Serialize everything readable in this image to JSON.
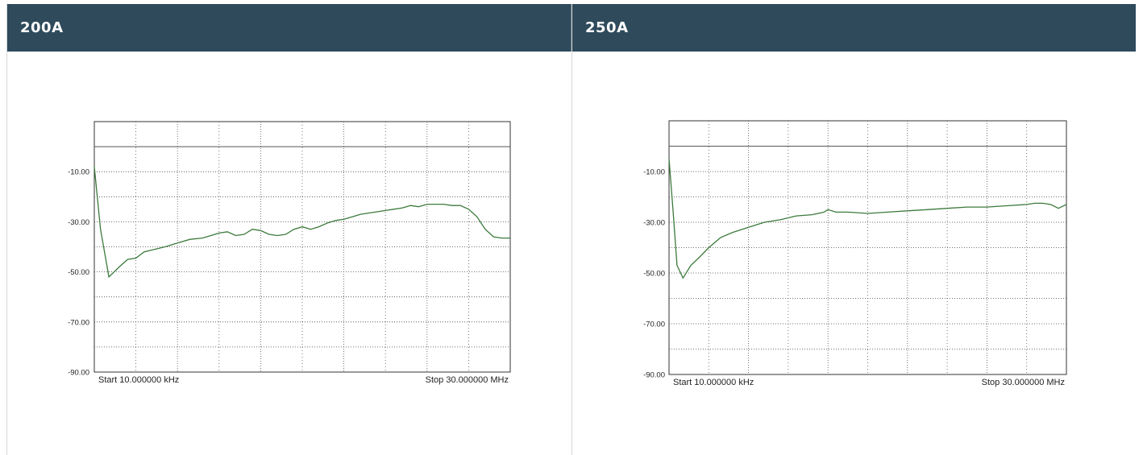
{
  "panels": [
    {
      "title": "200A"
    },
    {
      "title": "250A"
    }
  ],
  "colors": {
    "header_bg": "#2f4a5b",
    "header_text": "#ffffff",
    "trace": "#3b7a3b",
    "grid": "#444444"
  },
  "chart_data": [
    {
      "type": "line",
      "title": "200A",
      "xlabel": "",
      "ylabel": "",
      "ylim": [
        -90,
        10
      ],
      "yticks": [
        -10,
        -30,
        -50,
        -70,
        -90
      ],
      "ytick_labels": [
        "-10.00",
        "-30.00",
        "-50.00",
        "-70.00",
        "-90.00"
      ],
      "x_divisions": 10,
      "start_label": "Start 10.000000 kHz",
      "stop_label": "Stop 30.000000 MHz",
      "reference_level": 0,
      "x": [
        0,
        0.15,
        0.35,
        0.6,
        0.8,
        1.0,
        1.2,
        1.45,
        1.7,
        2.0,
        2.3,
        2.6,
        2.9,
        3.0,
        3.2,
        3.4,
        3.6,
        3.8,
        4.0,
        4.2,
        4.4,
        4.6,
        4.8,
        5.0,
        5.2,
        5.4,
        5.6,
        5.8,
        6.0,
        6.2,
        6.4,
        6.6,
        6.8,
        7.0,
        7.2,
        7.4,
        7.6,
        7.8,
        8.0,
        8.2,
        8.4,
        8.6,
        8.8,
        9.0,
        9.2,
        9.4,
        9.6,
        9.8,
        10.0
      ],
      "y": [
        -8,
        -33,
        -52,
        -48,
        -45,
        -44.5,
        -42,
        -41,
        -40,
        -38.5,
        -37,
        -36.5,
        -35,
        -34.5,
        -34,
        -35.5,
        -35,
        -33,
        -33.5,
        -35,
        -35.5,
        -35,
        -33,
        -32,
        -33,
        -32,
        -30.5,
        -29.5,
        -29,
        -28,
        -27,
        -26.5,
        -26,
        -25.5,
        -25,
        -24.5,
        -23.5,
        -24,
        -23,
        -23,
        -23,
        -23.5,
        -23.5,
        -25,
        -28,
        -33,
        -36,
        -36.5,
        -36.5
      ]
    },
    {
      "type": "line",
      "title": "250A",
      "xlabel": "",
      "ylabel": "",
      "ylim": [
        -90,
        10
      ],
      "yticks": [
        -10,
        -30,
        -50,
        -70,
        -90
      ],
      "ytick_labels": [
        "-10.00",
        "-30.00",
        "-50.00",
        "-70.00",
        "-90.00"
      ],
      "x_divisions": 10,
      "start_label": "Start 10.000000 kHz",
      "stop_label": "Stop 30.000000 MHz",
      "reference_level": 0,
      "x": [
        0,
        0.1,
        0.2,
        0.35,
        0.55,
        0.75,
        1.0,
        1.3,
        1.6,
        2.0,
        2.4,
        2.8,
        3.2,
        3.6,
        3.9,
        4.0,
        4.2,
        4.5,
        5.0,
        5.5,
        6.0,
        6.5,
        7.0,
        7.5,
        8.0,
        8.5,
        9.0,
        9.2,
        9.4,
        9.6,
        9.8,
        10.0
      ],
      "y": [
        -5,
        -25,
        -47,
        -52,
        -47,
        -44,
        -40,
        -36,
        -34,
        -32,
        -30,
        -29,
        -27.5,
        -27,
        -26,
        -25,
        -26,
        -26,
        -26.5,
        -26,
        -25.5,
        -25,
        -24.5,
        -24,
        -24,
        -23.5,
        -23,
        -22.5,
        -22.5,
        -23,
        -24.5,
        -23
      ]
    }
  ]
}
